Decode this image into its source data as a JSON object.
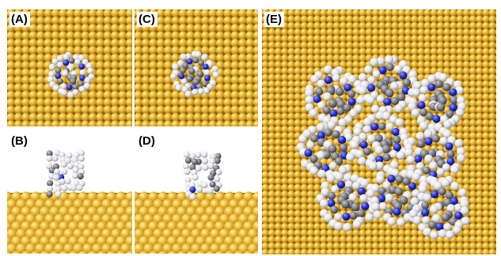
{
  "figure": {
    "panels": [
      {
        "id": "A",
        "label": "(A)",
        "view": "top",
        "molecules": 1
      },
      {
        "id": "C",
        "label": "(C)",
        "view": "top",
        "molecules": 1
      },
      {
        "id": "E",
        "label": "(E)",
        "view": "top",
        "molecules": 9
      },
      {
        "id": "B",
        "label": "(B)",
        "view": "side",
        "molecules": 1
      },
      {
        "id": "D",
        "label": "(D)",
        "view": "side",
        "molecules": 1
      }
    ],
    "colors": {
      "surface_gold": "#e2ab2c",
      "surface_shadow": "#8a5d08",
      "surface_highlight": "#fbe07a",
      "hydrogen": "#e8e8ec",
      "carbon": "#7d7d85",
      "nitrogen": "#1d2bd6",
      "background": "#ffffff"
    }
  }
}
